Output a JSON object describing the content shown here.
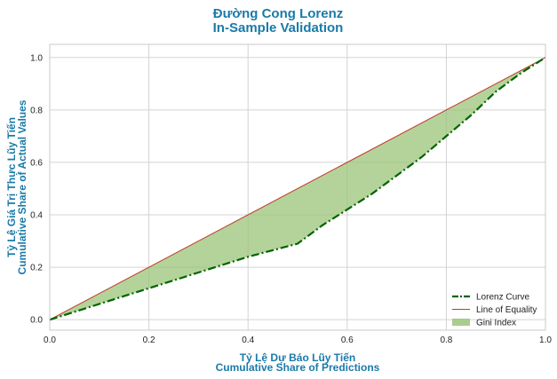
{
  "chart_data": {
    "type": "line",
    "title": [
      "Đường Cong Lorenz",
      "In-Sample Validation"
    ],
    "xlabel": [
      "Tỷ Lệ Dự Báo Lũy Tiến",
      "Cumulative Share of Predictions"
    ],
    "ylabel": [
      "Tỷ Lệ Giá Trị Thực Lũy Tiến",
      "Cumulative Share of Actual Values"
    ],
    "xlim": [
      0,
      1.0
    ],
    "ylim": [
      -0.04,
      1.05
    ],
    "xticks": [
      0.0,
      0.2,
      0.4,
      0.6,
      0.8,
      1.0
    ],
    "xtick_labels": [
      "0.0",
      "0.2",
      "0.4",
      "0.6",
      "0.8",
      "1.0"
    ],
    "yticks": [
      0.0,
      0.2,
      0.4,
      0.6,
      0.8,
      1.0
    ],
    "ytick_labels": [
      "0.0",
      "0.2",
      "0.4",
      "0.6",
      "0.8",
      "1.0"
    ],
    "grid": true,
    "legend_position": "bottom-right",
    "series": [
      {
        "name": "Lorenz Curve",
        "style": "dash-dot",
        "color": "#006400",
        "x": [
          0.0,
          0.05,
          0.1,
          0.15,
          0.2,
          0.25,
          0.3,
          0.35,
          0.4,
          0.45,
          0.5,
          0.55,
          0.6,
          0.65,
          0.7,
          0.75,
          0.8,
          0.85,
          0.9,
          0.95,
          1.0
        ],
        "y": [
          0.0,
          0.03,
          0.06,
          0.09,
          0.12,
          0.15,
          0.18,
          0.21,
          0.24,
          0.265,
          0.29,
          0.36,
          0.42,
          0.48,
          0.55,
          0.62,
          0.7,
          0.78,
          0.87,
          0.94,
          1.0
        ]
      },
      {
        "name": "Line of Equality",
        "style": "solid",
        "color": "#c0392b",
        "x": [
          0.0,
          1.0
        ],
        "y": [
          0.0,
          1.0
        ]
      }
    ],
    "fill": {
      "name": "Gini Index",
      "color": "#9bc47a"
    }
  },
  "colors": {
    "title": "#1a7aa8",
    "axis_label": "#1a7aa8",
    "grid": "#d3d3d3",
    "axes_border": "#c8c8c8"
  }
}
